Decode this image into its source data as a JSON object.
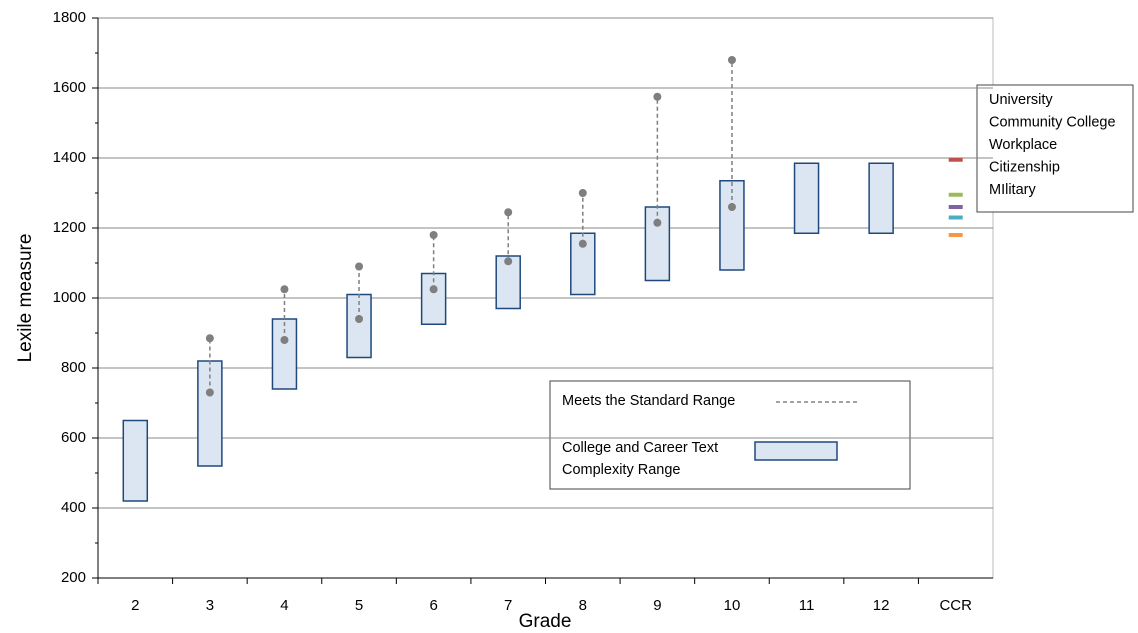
{
  "chart_data": {
    "type": "range",
    "y_label": "Lexile measure",
    "x_label": "Grade",
    "categories": [
      "2",
      "3",
      "4",
      "5",
      "6",
      "7",
      "8",
      "9",
      "10",
      "11",
      "12",
      "CCR"
    ],
    "ylim": [
      200,
      1800
    ],
    "yticks": [
      200,
      400,
      600,
      800,
      1000,
      1200,
      1400,
      1600,
      1800
    ],
    "grid": true,
    "series": [
      {
        "name": "Meets the Standard Range",
        "style": "dashed-dots",
        "color": "#7f7f7f",
        "low": [
          null,
          730,
          880,
          940,
          1025,
          1105,
          1155,
          1215,
          1260,
          null,
          null,
          null
        ],
        "high": [
          null,
          885,
          1025,
          1090,
          1180,
          1245,
          1300,
          1575,
          1680,
          null,
          null,
          null
        ]
      },
      {
        "name": "College and Career Text Complexity Range",
        "style": "box",
        "color": "#1f497d",
        "fill": "#dce6f2",
        "low": [
          420,
          520,
          740,
          830,
          925,
          970,
          1010,
          1050,
          1080,
          1185,
          1185,
          null
        ],
        "high": [
          650,
          820,
          940,
          1010,
          1070,
          1120,
          1185,
          1260,
          1335,
          1385,
          1385,
          null
        ]
      }
    ],
    "ccr_levels": [
      {
        "name": "University",
        "color": "#c0504d",
        "value": 1395
      },
      {
        "name": "Community College",
        "color": "#9bbb59",
        "value": 1295
      },
      {
        "name": "Workplace",
        "color": "#8064a2",
        "value": 1260
      },
      {
        "name": "Citizenship",
        "color": "#4bacc6",
        "value": 1230
      },
      {
        "name": "MIlitary",
        "color": "#f79646",
        "value": 1180
      }
    ]
  }
}
